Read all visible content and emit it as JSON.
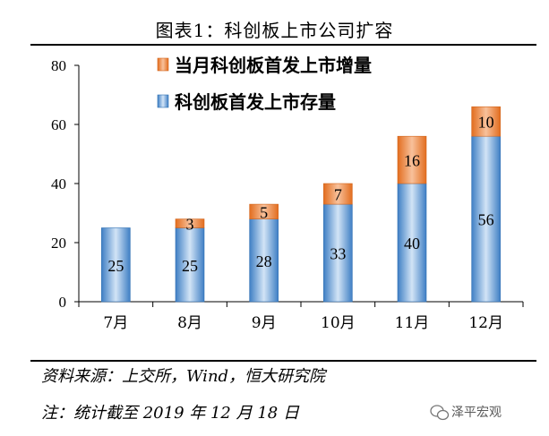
{
  "title": "图表1：科创板上市公司扩容",
  "source": "资料来源：上交所，Wind，恒大研究院",
  "note": "注：统计截至 2019 年 12 月 18 日",
  "watermark": "泽平宏观",
  "chart_data": {
    "type": "bar",
    "stacked": true,
    "categories": [
      "7月",
      "8月",
      "9月",
      "10月",
      "11月",
      "12月"
    ],
    "series": [
      {
        "name": "科创板首发上市存量",
        "values": [
          25,
          25,
          28,
          33,
          40,
          56
        ],
        "color": "#5b9bd5"
      },
      {
        "name": "当月科创板首发上市增量",
        "values": [
          0,
          3,
          5,
          7,
          16,
          10
        ],
        "color": "#ed7d31"
      }
    ],
    "ylim": [
      0,
      80
    ],
    "yticks": [
      0,
      20,
      40,
      60,
      80
    ],
    "grid": false,
    "legend_position": "top-center"
  }
}
